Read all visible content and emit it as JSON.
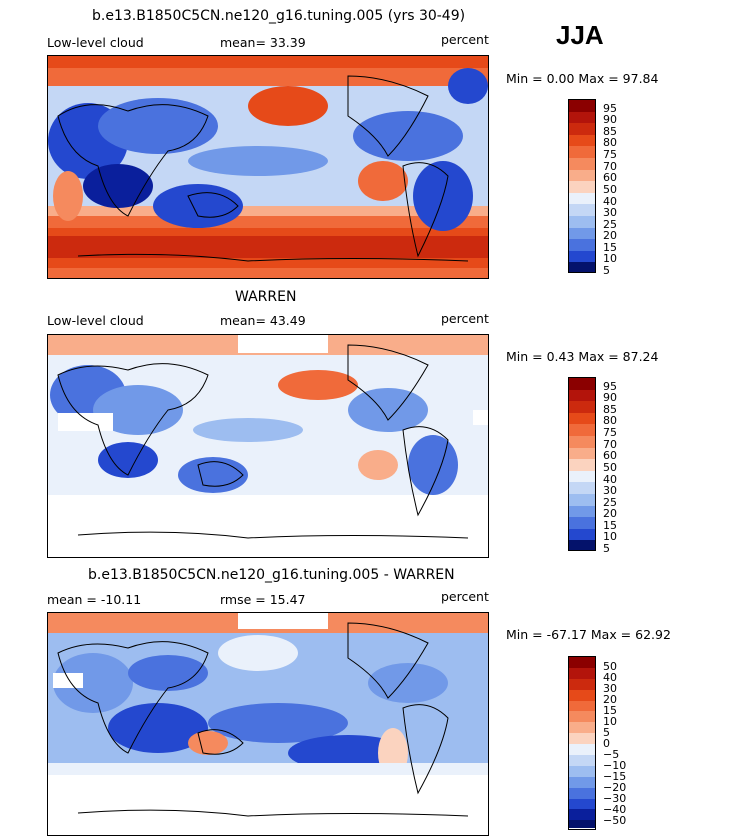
{
  "season": "JJA",
  "panels": [
    {
      "title": "b.e13.B1850C5CN.ne120_g16.tuning.005 (yrs 30-49)",
      "left_label": "Low-level cloud",
      "center_label": "mean=  33.39",
      "right_label": "percent",
      "minmax": "Min =   0.00 Max =  97.84",
      "colorbar_labels": [
        "95",
        "90",
        "85",
        "80",
        "75",
        "70",
        "60",
        "50",
        "40",
        "30",
        "25",
        "20",
        "15",
        "10",
        "5"
      ]
    },
    {
      "title": "WARREN",
      "left_label": "Low-level cloud",
      "center_label": "mean=  43.49",
      "right_label": "percent",
      "minmax": "Min =   0.43 Max =  87.24",
      "colorbar_labels": [
        "95",
        "90",
        "85",
        "80",
        "75",
        "70",
        "60",
        "50",
        "40",
        "30",
        "25",
        "20",
        "15",
        "10",
        "5"
      ]
    },
    {
      "title": "b.e13.B1850C5CN.ne120_g16.tuning.005 - WARREN",
      "left_label": "mean = -10.11",
      "center_label": "rmse =  15.47",
      "right_label": "percent",
      "minmax": "Min = -67.17 Max =  62.92",
      "colorbar_labels": [
        "50",
        "40",
        "30",
        "20",
        "15",
        "10",
        "5",
        "0",
        "−5",
        "−10",
        "−15",
        "−20",
        "−30",
        "−40",
        "−50"
      ]
    }
  ],
  "colors": {
    "scale": [
      "#8b0000",
      "#b3140b",
      "#cc2a0e",
      "#e64a19",
      "#f06a3a",
      "#f58a5e",
      "#f9ad8a",
      "#fbd3bf",
      "#eaf1fb",
      "#c4d7f5",
      "#9dbdf0",
      "#7199e8",
      "#4a72de",
      "#2448cf",
      "#0a1f9c",
      "#04126b"
    ],
    "land_outline": "#000000",
    "missing": "#ffffff"
  },
  "chart_data": [
    {
      "type": "heatmap",
      "title": "b.e13.B1850C5CN.ne120_g16.tuning.005 (yrs 30-49)",
      "variable": "Low-level cloud",
      "units": "percent",
      "mean": 33.39,
      "min": 0.0,
      "max": 97.84,
      "contour_levels": [
        5,
        10,
        15,
        20,
        25,
        30,
        40,
        50,
        60,
        70,
        75,
        80,
        85,
        90,
        95
      ]
    },
    {
      "type": "heatmap",
      "title": "WARREN",
      "variable": "Low-level cloud",
      "units": "percent",
      "mean": 43.49,
      "min": 0.43,
      "max": 87.24,
      "contour_levels": [
        5,
        10,
        15,
        20,
        25,
        30,
        40,
        50,
        60,
        70,
        75,
        80,
        85,
        90,
        95
      ]
    },
    {
      "type": "heatmap",
      "title": "b.e13.B1850C5CN.ne120_g16.tuning.005 - WARREN",
      "units": "percent",
      "mean": -10.11,
      "rmse": 15.47,
      "min": -67.17,
      "max": 62.92,
      "contour_levels": [
        -50,
        -40,
        -30,
        -20,
        -15,
        -10,
        -5,
        0,
        5,
        10,
        15,
        20,
        30,
        40,
        50
      ]
    }
  ]
}
